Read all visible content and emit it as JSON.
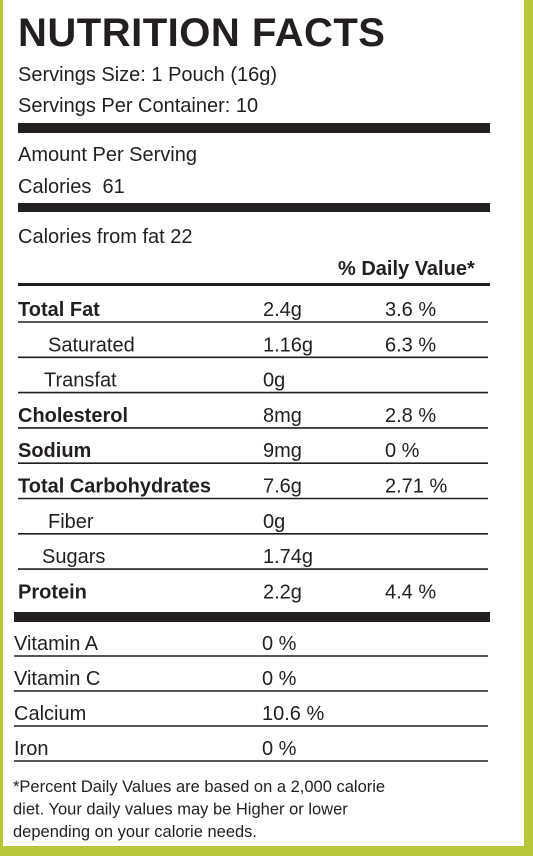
{
  "title": "NUTRITION FACTS",
  "serving_size": "Servings Size: 1 Pouch (16g)",
  "servings_per_container": "Servings Per Container: 10",
  "amount_per_serving": "Amount Per Serving",
  "calories": "Calories  61",
  "calories_from_fat": "Calories from fat 22",
  "daily_value_header": "% Daily Value*",
  "nutrients": [
    {
      "name": "Total Fat",
      "amount": "2.4g",
      "daily_value": "3.6 %"
    },
    {
      "name": "Saturated",
      "amount": "1.16g",
      "daily_value": "6.3 %"
    },
    {
      "name": "Transfat",
      "amount": "0g"
    },
    {
      "name": "Cholesterol",
      "amount": "8mg",
      "daily_value": "2.8 %"
    },
    {
      "name": "Sodium",
      "amount": "9mg",
      "daily_value": "0 %"
    },
    {
      "name": "Total Carbohydrates",
      "amount": "7.6g",
      "daily_value": "2.71 %"
    },
    {
      "name": "Fiber",
      "amount": "0g"
    },
    {
      "name": "Sugars",
      "amount": "1.74g"
    },
    {
      "name": "Protein",
      "amount": "2.2g",
      "daily_value": "4.4 %"
    }
  ],
  "vitamins": [
    {
      "name": "Vitamin A",
      "amount": "0 %"
    },
    {
      "name": "Vitamin C",
      "amount": "0 %"
    },
    {
      "name": "Calcium",
      "amount": "10.6 %"
    },
    {
      "name": "Iron",
      "amount": "0 %"
    }
  ],
  "footnote": [
    "*Percent Daily Values are based on a 2,000 calorie",
    "diet. Your daily values may be Higher or lower",
    "depending on your calorie needs."
  ]
}
